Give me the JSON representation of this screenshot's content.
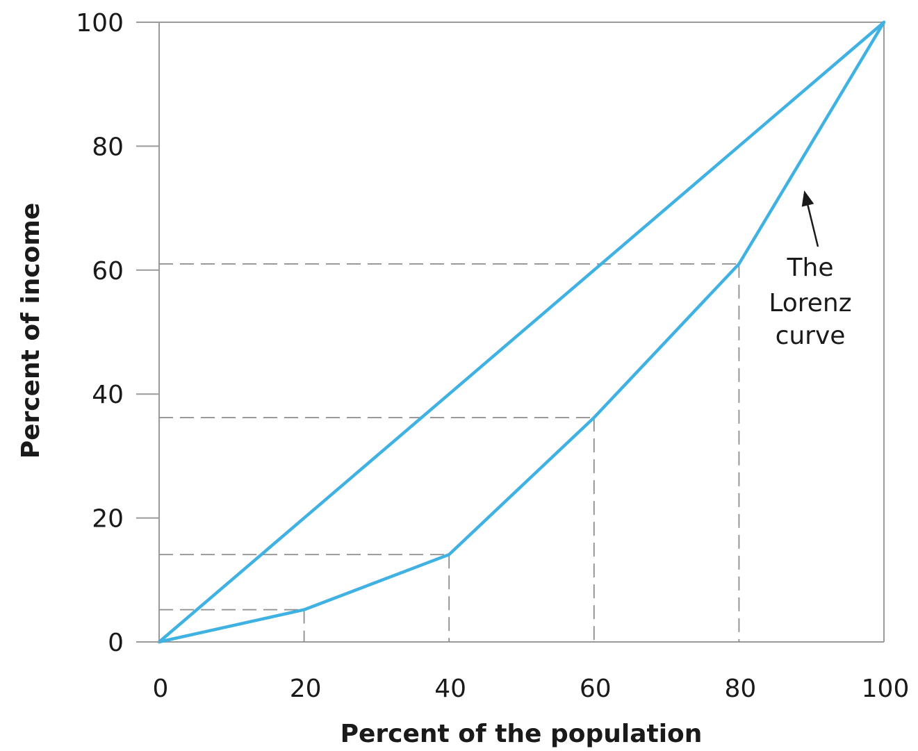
{
  "chart_data": {
    "type": "line",
    "title": "",
    "xlabel": "Percent of the population",
    "ylabel": "Percent of income",
    "xlim": [
      0,
      100
    ],
    "ylim": [
      0,
      100
    ],
    "x_ticks": [
      "0",
      "20",
      "40",
      "60",
      "80",
      "100"
    ],
    "y_ticks": [
      "0",
      "20",
      "40",
      "60",
      "80",
      "100"
    ],
    "grid": false,
    "legend": "none",
    "line_color": "#3fb1e3",
    "series": [
      {
        "x": [
          0,
          100
        ],
        "y": [
          0,
          100
        ]
      },
      {
        "x": [
          0,
          20,
          40,
          60,
          80,
          100
        ],
        "y": [
          0,
          5.2,
          14.1,
          36.2,
          61,
          100
        ]
      }
    ],
    "reference_lines": [
      {
        "x": 20,
        "y": 5.2
      },
      {
        "x": 40,
        "y": 14.1
      },
      {
        "x": 60,
        "y": 36.2
      },
      {
        "x": 80,
        "y": 61
      }
    ],
    "annotation": {
      "lines": [
        "The",
        "Lorenz",
        "curve"
      ],
      "points_to": {
        "x": 89,
        "y": 76
      }
    }
  }
}
